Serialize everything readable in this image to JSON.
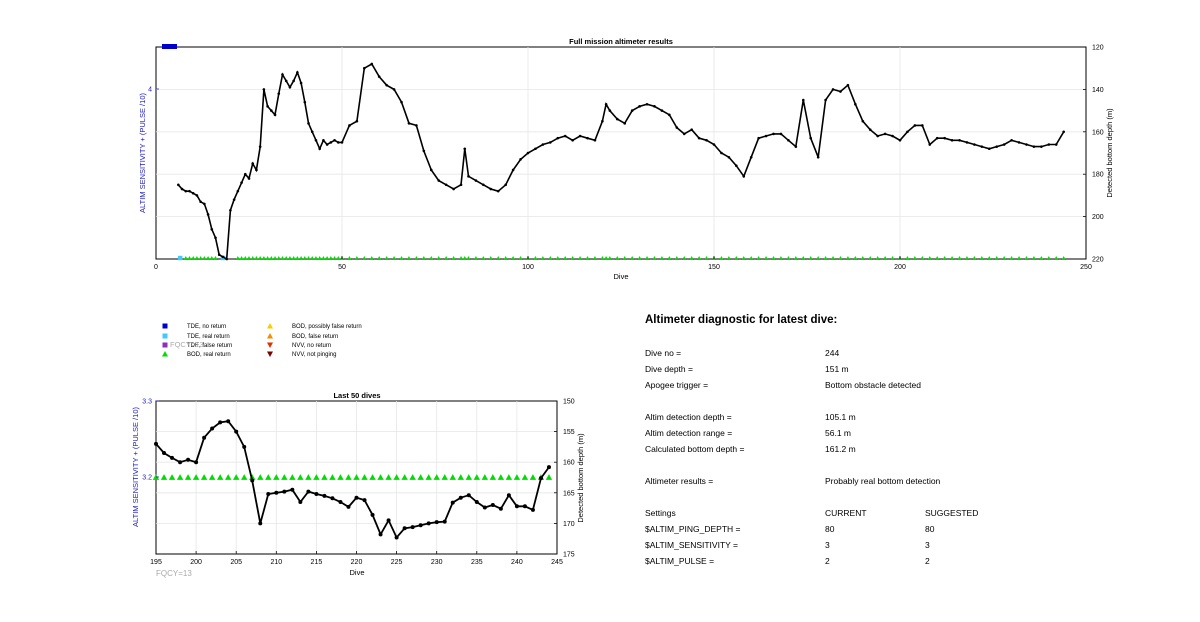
{
  "chart_data": [
    {
      "type": "line",
      "title": "Full mission altimeter results",
      "xlabel": "Dive",
      "ylabel_left": "ALTIM SENSITIVITY + (PULSE /10)",
      "ylabel_right": "Detected bottom depth (m)",
      "xlim": [
        0,
        250
      ],
      "x_ticks": [
        "0",
        "50",
        "100",
        "150",
        "200",
        "250"
      ],
      "ylim_left_labels": [
        "4"
      ],
      "ylim_right": [
        120,
        220
      ],
      "y_right_reversed": true,
      "y_right_ticks": [
        "120",
        "140",
        "160",
        "180",
        "200",
        "220"
      ],
      "grid": true,
      "series": [
        {
          "name": "Detected bottom depth",
          "color": "#000000",
          "x": [
            6,
            7,
            8,
            9,
            10,
            11,
            12,
            13,
            14,
            15,
            16,
            17,
            18,
            19,
            20,
            21,
            22,
            23,
            24,
            25,
            26,
            27,
            28,
            29,
            30,
            31,
            32,
            33,
            34,
            35,
            36,
            37,
            38,
            39,
            40,
            41,
            42,
            43,
            44,
            45,
            46,
            47,
            48,
            49,
            50,
            52,
            54,
            56,
            58,
            60,
            62,
            64,
            66,
            68,
            70,
            72,
            74,
            76,
            78,
            80,
            82,
            83,
            84,
            86,
            88,
            90,
            92,
            94,
            96,
            98,
            100,
            102,
            104,
            106,
            108,
            110,
            112,
            114,
            116,
            118,
            120,
            121,
            122,
            124,
            126,
            128,
            130,
            132,
            134,
            136,
            138,
            140,
            142,
            144,
            146,
            148,
            150,
            152,
            154,
            156,
            158,
            160,
            162,
            164,
            166,
            168,
            170,
            172,
            174,
            176,
            178,
            180,
            182,
            184,
            186,
            188,
            190,
            192,
            194,
            196,
            198,
            200,
            202,
            204,
            206,
            208,
            210,
            212,
            214,
            216,
            218,
            220,
            222,
            224,
            226,
            228,
            230,
            232,
            234,
            236,
            238,
            240,
            242,
            244
          ],
          "y": [
            185,
            187,
            188,
            188,
            189,
            190,
            193,
            194,
            199,
            206,
            210,
            218,
            219,
            220,
            197,
            192,
            188,
            184,
            180,
            182,
            175,
            178,
            167,
            140,
            148,
            150,
            152,
            142,
            133,
            136,
            139,
            136,
            132,
            137,
            146,
            156,
            160,
            164,
            168,
            164,
            166,
            165,
            164,
            165,
            165,
            157,
            155,
            130,
            128,
            134,
            138,
            140,
            146,
            156,
            157,
            169,
            178,
            183,
            185,
            187,
            185,
            168,
            181,
            183,
            185,
            187,
            188,
            185,
            178,
            173,
            170,
            168,
            166,
            165,
            163,
            162,
            164,
            162,
            163,
            164,
            155,
            147,
            150,
            154,
            156,
            150,
            148,
            147,
            148,
            150,
            152,
            158,
            161,
            159,
            163,
            164,
            166,
            170,
            172,
            176,
            181,
            172,
            163,
            162,
            161,
            161,
            164,
            167,
            145,
            163,
            172,
            145,
            140,
            141,
            138,
            147,
            155,
            159,
            162,
            161,
            162,
            164,
            160,
            157,
            157,
            166,
            163,
            163,
            164,
            164,
            165,
            166,
            167,
            168,
            167,
            166,
            164,
            165,
            166,
            167,
            167,
            166,
            166,
            160
          ]
        }
      ],
      "annotations": [
        {
          "text": "FQCY=13",
          "color": "#aaaaaa"
        }
      ]
    },
    {
      "type": "line",
      "title": "Last 50 dives",
      "xlabel": "Dive",
      "ylabel_left": "ALTIM SENSITIVITY + (PULSE /10)",
      "ylabel_right": "Detected bottom depth (m)",
      "xlim": [
        195,
        245
      ],
      "x_ticks": [
        "195",
        "200",
        "205",
        "210",
        "215",
        "220",
        "225",
        "230",
        "235",
        "240",
        "245"
      ],
      "y_left_ticks": [
        "3.3",
        "3.2"
      ],
      "ylim_right": [
        150,
        175
      ],
      "y_right_reversed": true,
      "y_right_ticks": [
        "150",
        "155",
        "160",
        "165",
        "170",
        "175"
      ],
      "grid": true,
      "series": [
        {
          "name": "Detected bottom depth",
          "color": "#000000",
          "x": [
            195,
            196,
            197,
            198,
            199,
            200,
            201,
            202,
            203,
            204,
            205,
            206,
            207,
            208,
            209,
            210,
            211,
            212,
            213,
            214,
            215,
            216,
            217,
            218,
            219,
            220,
            221,
            222,
            223,
            224,
            225,
            226,
            227,
            228,
            229,
            230,
            231,
            232,
            233,
            234,
            235,
            236,
            237,
            238,
            239,
            240,
            241,
            242,
            243,
            244
          ],
          "y": [
            157,
            158.5,
            159.3,
            160,
            159.6,
            160,
            156,
            154.5,
            153.5,
            153.3,
            155,
            157.5,
            163,
            170,
            165.2,
            165,
            164.8,
            164.5,
            166.5,
            164.8,
            165.2,
            165.5,
            165.9,
            166.5,
            167.3,
            165.8,
            166.2,
            168.6,
            171.8,
            169.5,
            172.3,
            170.8,
            170.6,
            170.3,
            170,
            169.8,
            169.7,
            166.6,
            165.8,
            165.4,
            166.5,
            167.4,
            167,
            167.6,
            165.4,
            167.2,
            167.2,
            167.8,
            162.6,
            160.8
          ]
        }
      ],
      "annotations": [
        {
          "text": "FQCY=13",
          "color": "#aaaaaa"
        }
      ]
    }
  ],
  "legend": [
    {
      "label": "TDE, no return",
      "marker": "square",
      "color": "#0000cc"
    },
    {
      "label": "TDE, real return",
      "marker": "square",
      "color": "#40c8ff"
    },
    {
      "label": "TDE, false return",
      "marker": "square",
      "color": "#8b2fbf"
    },
    {
      "label": "BOD, real return",
      "marker": "triangle-up",
      "color": "#00dd00"
    },
    {
      "label": "BOD, possibly false return",
      "marker": "triangle-up",
      "color": "#f2d000"
    },
    {
      "label": "BOD, false return",
      "marker": "triangle-up",
      "color": "#f28c00"
    },
    {
      "label": "NVV, no return",
      "marker": "triangle-down",
      "color": "#e03000"
    },
    {
      "label": "NVV, not pinging",
      "marker": "triangle-down",
      "color": "#7a0000"
    }
  ],
  "diagnostic": {
    "title": "Altimeter diagnostic for latest dive:",
    "rows": [
      {
        "label": "Dive no =",
        "value": "244"
      },
      {
        "label": "Dive depth =",
        "value": "151 m"
      },
      {
        "label": "Apogee trigger =",
        "value": "Bottom obstacle detected"
      },
      {
        "label": "Altim detection depth =",
        "value": "105.1 m"
      },
      {
        "label": "Altim detection range =",
        "value": "56.1 m"
      },
      {
        "label": "Calculated bottom depth =",
        "value": "161.2 m"
      },
      {
        "label": "Altimeter results =",
        "value": "Probably real bottom detection"
      }
    ],
    "settings_header": {
      "label": "Settings",
      "current": "CURRENT",
      "suggested": "SUGGESTED"
    },
    "settings": [
      {
        "label": "$ALTIM_PING_DEPTH =",
        "current": "80",
        "suggested": "80"
      },
      {
        "label": "$ALTIM_SENSITIVITY =",
        "current": "3",
        "suggested": "3"
      },
      {
        "label": "$ALTIM_PULSE =",
        "current": "2",
        "suggested": "2"
      }
    ]
  },
  "colors": {
    "axis": "#000000",
    "left_axis": "#2020c0",
    "grid": "#e6e6e6",
    "bod_real": "#00dd00",
    "tde_no_return": "#0000cc",
    "tde_real_return": "#40c8ff",
    "fqcy_text": "#aaaaaa"
  }
}
